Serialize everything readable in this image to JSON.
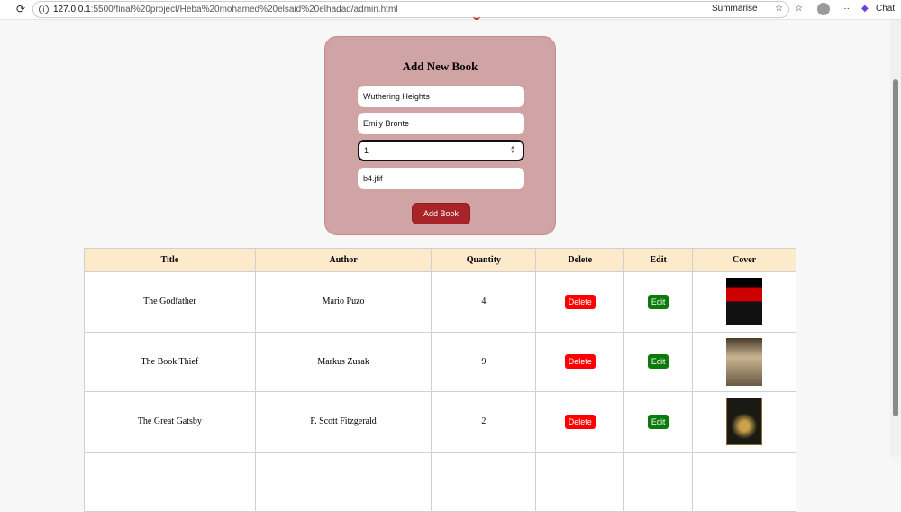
{
  "browser": {
    "url_host": "127.0.0.1",
    "url_path": ":5500/final%20project/Heba%20mohamed%20elsaid%20elhadad/admin.html",
    "summarise": "Summarise",
    "chat": "Chat"
  },
  "form": {
    "title": "Add New Book",
    "title_value": "Wuthering Heights",
    "author_value": "Emily Bronte",
    "quantity_value": "1",
    "cover_value": "b4.jfif",
    "submit": "Add Book"
  },
  "table": {
    "headers": [
      "Title",
      "Author",
      "Quantity",
      "Delete",
      "Edit",
      "Cover"
    ],
    "rows": [
      {
        "title": "The Godfather",
        "author": "Mario Puzo",
        "quantity": "4",
        "delete": "Delete",
        "edit": "Edit"
      },
      {
        "title": "The Book Thief",
        "author": "Markus Zusak",
        "quantity": "9",
        "delete": "Delete",
        "edit": "Edit"
      },
      {
        "title": "The Great Gatsby",
        "author": "F. Scott Fitzgerald",
        "quantity": "2",
        "delete": "Delete",
        "edit": "Edit"
      }
    ]
  },
  "colors": {
    "form_bg": "#d0a3a4",
    "button": "#a82429",
    "header_bg": "#fdeacb",
    "delete": "#ff0000",
    "edit": "#0a7a0a"
  }
}
